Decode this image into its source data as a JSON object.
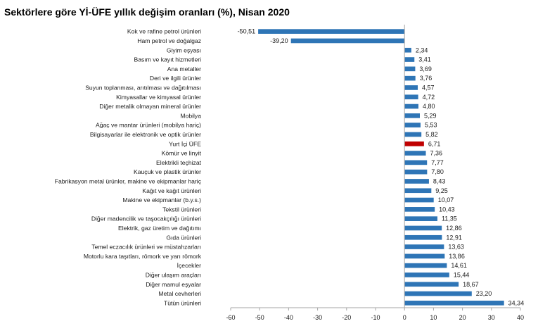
{
  "chart_data": {
    "type": "bar",
    "orientation": "horizontal",
    "title": "Sektörlere göre Yİ-ÜFE yıllık değişim oranları (%), Nisan 2020",
    "xlim": [
      -60,
      40
    ],
    "xticks": [
      -60,
      -50,
      -40,
      -30,
      -20,
      -10,
      0,
      10,
      20,
      30,
      40
    ],
    "grid": false,
    "categories": [
      "Kok ve rafine petrol ürünleri",
      "Ham petrol ve doğalgaz",
      "Giyim eşyası",
      "Basım ve kayıt hizmetleri",
      "Ana metaller",
      "Deri ve ilgili ürünler",
      "Suyun toplanması, arıtılması ve dağıtılması",
      "Kimyasallar ve kimyasal ürünler",
      "Diğer metalik olmayan mineral ürünler",
      "Mobilya",
      "Ağaç ve mantar ürünleri (mobilya hariç)",
      "Bilgisayarlar ile elektronik ve optik ürünler",
      "Yurt İçi ÜFE",
      "Kömür ve linyit",
      "Elektrikli teçhizat",
      "Kauçuk ve plastik ürünler",
      "Fabrikasyon metal ürünler, makine ve ekipmanlar hariç",
      "Kağıt ve kağıt ürünleri",
      "Makine ve ekipmanlar (b.y.s.)",
      "Tekstil ürünleri",
      "Diğer madencilik ve taşocakçılığı ürünleri",
      "Elektrik, gaz üretim ve dağıtımı",
      "Gıda ürünleri",
      "Temel eczacılık ürünleri ve müstahzarları",
      "Motorlu kara taşıtları, römork ve yarı römork",
      "İçecekler",
      "Diğer ulaşım araçları",
      "Diğer mamul eşyalar",
      "Metal cevherleri",
      "Tütün ürünleri"
    ],
    "values": [
      -50.51,
      -39.2,
      2.34,
      3.41,
      3.69,
      3.76,
      4.57,
      4.72,
      4.8,
      5.29,
      5.53,
      5.82,
      6.71,
      7.36,
      7.77,
      7.8,
      8.43,
      9.25,
      10.07,
      10.43,
      11.35,
      12.86,
      12.91,
      13.63,
      13.86,
      14.61,
      15.44,
      18.67,
      23.2,
      34.34
    ],
    "value_labels": [
      "-50,51",
      "-39,20",
      "2,34",
      "3,41",
      "3,69",
      "3,76",
      "4,57",
      "4,72",
      "4,80",
      "5,29",
      "5,53",
      "5,82",
      "6,71",
      "7,36",
      "7,77",
      "7,80",
      "8,43",
      "9,25",
      "10,07",
      "10,43",
      "11,35",
      "12,86",
      "12,91",
      "13,63",
      "13,86",
      "14,61",
      "15,44",
      "18,67",
      "23,20",
      "34,34"
    ],
    "highlight_category": "Yurt İçi ÜFE",
    "colors": {
      "bar": "#2e75b6",
      "highlight": "#c00000",
      "axis": "#a6a6a6"
    }
  }
}
